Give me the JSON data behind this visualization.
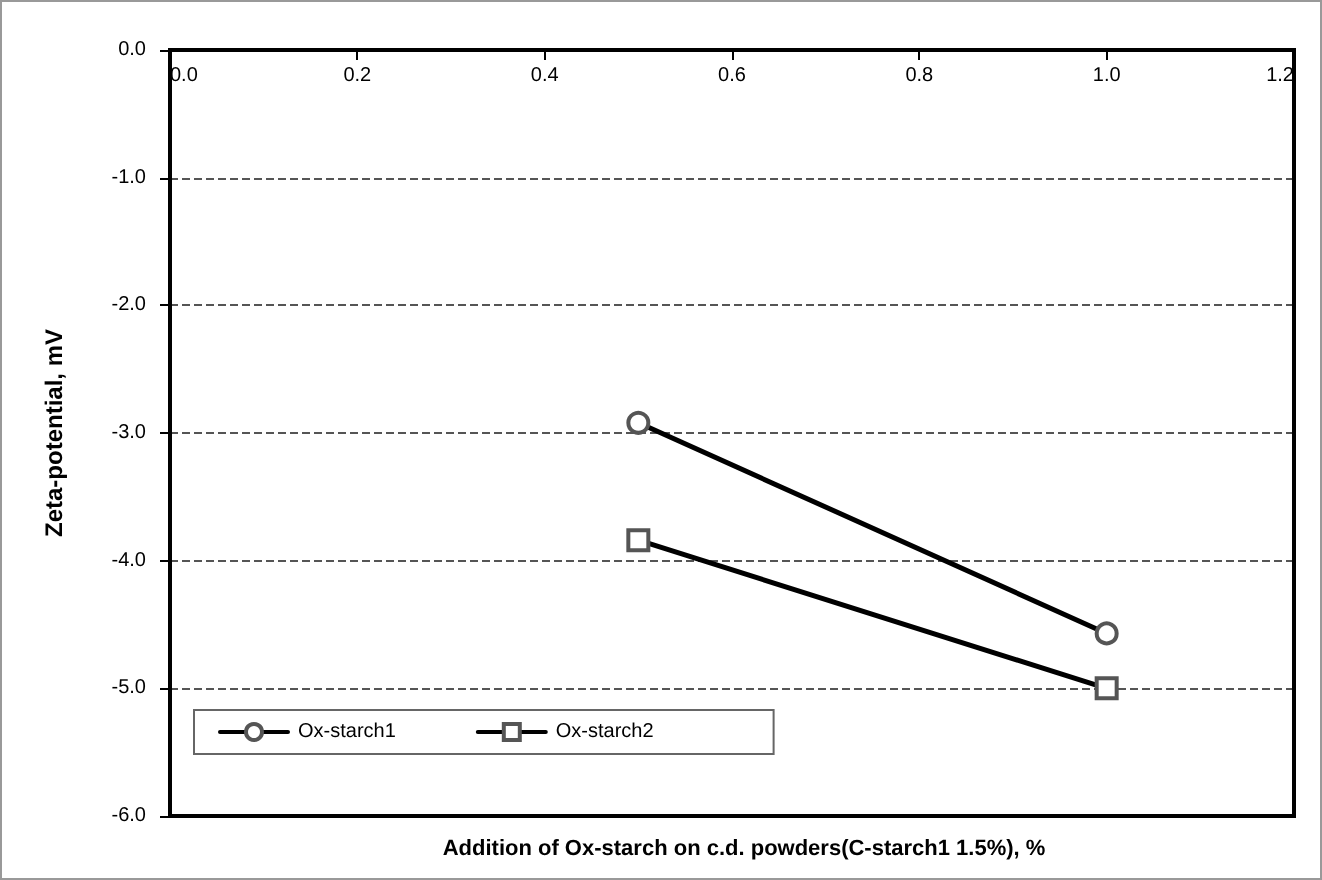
{
  "chart_data": {
    "type": "line",
    "xlabel": "Addition of Ox-starch on c.d. powders(C-starch1 1.5%), %",
    "ylabel": "Zeta-potential, mV",
    "x": [
      0.5,
      1.0
    ],
    "series": [
      {
        "name": "Ox-starch1",
        "color": "#000000",
        "values": [
          -2.92,
          -4.57
        ],
        "marker": "circle"
      },
      {
        "name": "Ox-starch2",
        "color": "#000000",
        "values": [
          -3.84,
          -5.0
        ],
        "marker": "square"
      }
    ],
    "xlim": [
      0,
      1.2
    ],
    "xticks": [
      {
        "value": 0,
        "label": "0.0"
      },
      0.2,
      0.4,
      0.6,
      0.8,
      {
        "value": 1,
        "label": "1.0"
      },
      1.2
    ],
    "ylim": [
      -6,
      0
    ],
    "yticks": [
      {
        "value": -6,
        "label": "-6.0"
      },
      {
        "value": -5,
        "label": "-5.0"
      },
      {
        "value": -4,
        "label": "-4.0"
      },
      {
        "value": -3,
        "label": "-3.0"
      },
      {
        "value": -2,
        "label": "-2.0"
      },
      {
        "value": -1,
        "label": "-1.0"
      },
      {
        "value": 0,
        "label": "0.0"
      }
    ],
    "grid": "y",
    "legend": "bottom",
    "line_style": "solid"
  }
}
